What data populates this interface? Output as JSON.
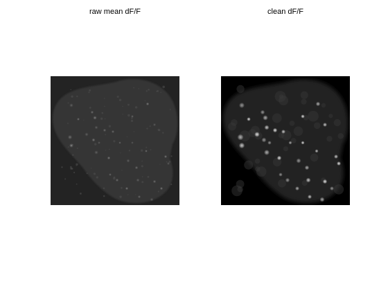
{
  "panels": [
    {
      "title": "raw mean dF/F",
      "background_color": "#232323",
      "tissue_color": "#343434",
      "cell_color": "#bdbdbd"
    },
    {
      "title": "clean dF/F",
      "background_color": "#000000",
      "tissue_color": "#222222",
      "cell_color": "#f2f2f2"
    }
  ]
}
